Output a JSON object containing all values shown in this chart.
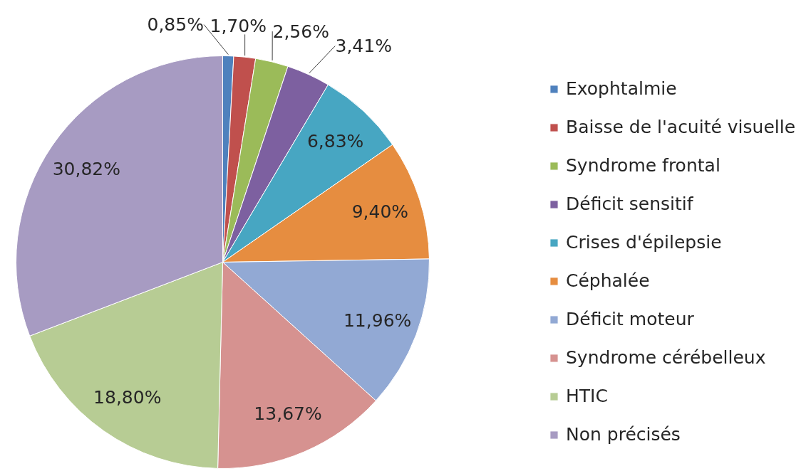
{
  "chart_data": {
    "type": "pie",
    "categories": [
      "Exophtalmie",
      "Baisse de l'acuité visuelle",
      "Syndrome frontal",
      "Déficit sensitif",
      "Crises d'épilepsie",
      "Céphalée",
      "Déficit moteur",
      "Syndrome cérébelleux",
      "HTIC",
      "Non précisés"
    ],
    "values": [
      0.85,
      1.7,
      2.56,
      3.41,
      6.83,
      9.4,
      11.96,
      13.67,
      18.8,
      30.82
    ],
    "colors": [
      "#4f81bd",
      "#c0504d",
      "#9bbb59",
      "#7d60a0",
      "#47a6c2",
      "#e68d40",
      "#92a9d4",
      "#d69290",
      "#b7cc94",
      "#a79bc2"
    ],
    "value_labels": [
      "0,85%",
      "1,70%",
      "2,56%",
      "3,41%",
      "6,83%",
      "9,40%",
      "11,96%",
      "13,67%",
      "18,80%",
      "30,82%"
    ],
    "legend": "right"
  }
}
